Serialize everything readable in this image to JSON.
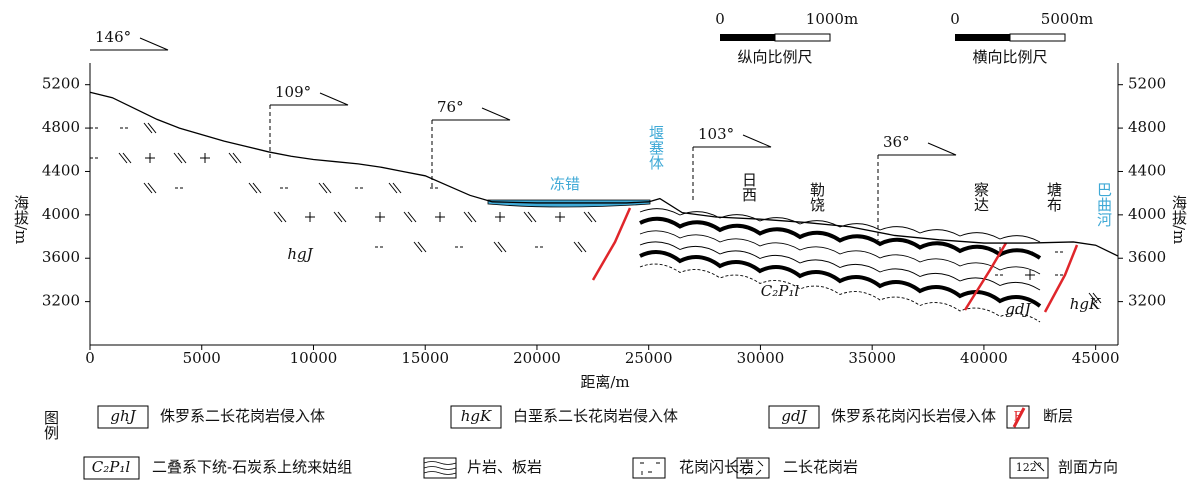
{
  "chart_data": {
    "type": "line",
    "x_label": "距离/m",
    "y_label": "海拔/m",
    "y2_label": "海拔/m",
    "x": [
      0,
      1000,
      2000,
      3000,
      4000,
      5000,
      6000,
      7000,
      8000,
      9000,
      10000,
      11000,
      12000,
      13000,
      14000,
      15000,
      16000,
      17000,
      18000,
      20000,
      22000,
      24000,
      25000,
      25500,
      26500,
      28000,
      30000,
      32000,
      34000,
      36000,
      38000,
      40000,
      42000,
      44000,
      45000,
      46000
    ],
    "values": [
      5130,
      5080,
      4980,
      4880,
      4800,
      4740,
      4680,
      4630,
      4580,
      4540,
      4510,
      4490,
      4470,
      4440,
      4400,
      4360,
      4270,
      4180,
      4120,
      4110,
      4110,
      4110,
      4120,
      4150,
      4020,
      3980,
      3960,
      3930,
      3890,
      3810,
      3770,
      3740,
      3740,
      3750,
      3720,
      3620
    ],
    "color": "#000000",
    "xlim": [
      0,
      46000
    ],
    "ylim": [
      2800,
      5400
    ],
    "xticks": [
      0,
      5000,
      10000,
      15000,
      20000,
      25000,
      30000,
      35000,
      40000,
      45000
    ],
    "yticks": [
      3200,
      3600,
      4000,
      4400,
      4800,
      5200
    ],
    "y2lim": [
      2800,
      5400
    ],
    "y2ticks": [
      3200,
      3600,
      4000,
      4400,
      4800,
      5200
    ],
    "directions": [
      "146°",
      "109°",
      "76°",
      "103°",
      "36°"
    ],
    "annotations": [
      "冻错",
      "堰塞体",
      "日西",
      "勒饶",
      "察达",
      "塘布",
      "巴曲河",
      "hgJ",
      "C₂P₁l",
      "gdJ",
      "hgK"
    ],
    "scale_bars": [
      {
        "ticks": [
          "0",
          "1000m"
        ],
        "label": "纵向比例尺"
      },
      {
        "ticks": [
          "0",
          "5000m"
        ],
        "label": "横向比例尺"
      }
    ],
    "legend": {
      "title": "图例",
      "items": [
        {
          "symbol": "ghJ",
          "label": "侏罗系二长花岗岩侵入体"
        },
        {
          "symbol": "hgK",
          "label": "白垩系二长花岗岩侵入体"
        },
        {
          "symbol": "gdJ",
          "label": "侏罗系花岗闪长岩侵入体"
        },
        {
          "symbol": "F",
          "label": "断层"
        },
        {
          "symbol": "C₂P₁l",
          "label": "二叠系下统-石炭系上统来姑组"
        },
        {
          "label": "片岩、板岩"
        },
        {
          "label": "花岗闪长岩"
        },
        {
          "label": "二长花岗岩"
        },
        {
          "symbol": "122°",
          "label": "剖面方向"
        }
      ]
    }
  }
}
